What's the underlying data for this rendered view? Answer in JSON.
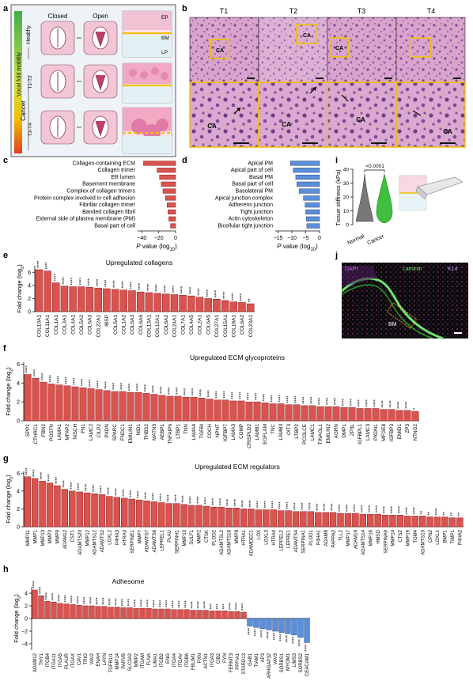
{
  "panel_letters": {
    "a": "a",
    "b": "b",
    "c": "c",
    "d": "d",
    "e": "e",
    "f": "f",
    "g": "g",
    "h": "h",
    "i": "i",
    "j": "j"
  },
  "panel_a": {
    "col_closed": "Closed",
    "col_open": "Open",
    "side_label": "Vocal fold mobility",
    "row_healthy": "Healthy",
    "row_cancer": "Cancer",
    "row_t1t2": "T1-T2",
    "row_t3t4": "T3-T4",
    "tissue_ep": "EP",
    "tissue_bm": "BM",
    "tissue_lp": "LP"
  },
  "panel_b": {
    "columns": [
      "T1",
      "T2",
      "T3",
      "T4"
    ],
    "box_label": "CA",
    "zoom_labels": [
      [
        "CA"
      ],
      [
        "CA"
      ],
      [
        "CA"
      ],
      [
        "CA"
      ]
    ]
  },
  "panel_i": {
    "y_label": "Tissue stiffness (kPa)",
    "pvalue": "<0.0001",
    "ticks": [
      "0",
      "10",
      "20",
      "30",
      "40"
    ]
  },
  "panel_j": {
    "label_dapi": "DAPI",
    "label_laminin": "Laminin",
    "label_k14": "K14",
    "label_bm": "BM"
  },
  "colors": {
    "up_bar": "#d9534f",
    "up_bar_stroke": "#8b1a1a",
    "down_bar": "#5b8fd9",
    "down_bar_stroke": "#1f3f7a",
    "he_pink": "#c987b8",
    "he_purple": "#6d3f8c",
    "gold": "#f2c200",
    "green_dot": "#3fbf3f"
  },
  "chart_data": [
    {
      "id": "c",
      "type": "bar",
      "orientation": "horizontal",
      "xlabel": "P value (log10)",
      "xticks": [
        -40,
        -20,
        0
      ],
      "xlim": [
        -45,
        0
      ],
      "categories": [
        "Collagen-containing ECM",
        "Collagen trimer",
        "ER lumen",
        "Basement membrane",
        "Complex of collagen trimers",
        "Protein complex involved in cell adhesion",
        "Fibrillar collagen trimer",
        "Banded collagen fibril",
        "External side of plasma membrane (PM)",
        "Basal part of cell"
      ],
      "values": [
        -38,
        -22,
        -19,
        -17,
        -15,
        -12,
        -10,
        -9,
        -8,
        -6
      ]
    },
    {
      "id": "d",
      "type": "bar",
      "orientation": "horizontal",
      "xlabel": "P value (log10)",
      "xticks": [
        -15,
        -10,
        -5,
        0
      ],
      "xlim": [
        -16,
        0
      ],
      "categories": [
        "Apical PM",
        "Apical part of cell",
        "Basal PM",
        "Basal part of cell",
        "Basolateral PM",
        "Apical junction complex",
        "Adherens junction",
        "Tight junction",
        "Actin cytoskeleton",
        "Bicellular tight junction"
      ],
      "values": [
        -10.5,
        -9.5,
        -8.6,
        -8.2,
        -7.4,
        -5.8,
        -5.2,
        -5.0,
        -4.8,
        -4.6
      ]
    },
    {
      "id": "e",
      "type": "bar",
      "title": "Upregulated collagens",
      "ylabel": "Fold change (log2)",
      "yticks": [
        0,
        2,
        4,
        6
      ],
      "ylim": [
        0,
        7
      ],
      "categories": [
        "COL10A1",
        "COL11A1",
        "COL1A1",
        "COL3A1",
        "COL4A1",
        "COL5A2",
        "COL6A3",
        "COL22A1",
        "IBSP",
        "COL5A1",
        "COL1A2",
        "COL5A3",
        "COL6A6",
        "COL13A1",
        "COL12A1",
        "COL6A2",
        "COL24A1",
        "COL7A1",
        "COL4A5",
        "COL2A1",
        "COL6A5",
        "COL27A1",
        "COL15A1",
        "COL18A1",
        "COL6A2",
        "COL23A1"
      ],
      "values": [
        6.4,
        6.2,
        4.4,
        3.9,
        3.8,
        3.8,
        3.7,
        3.6,
        3.5,
        3.4,
        3.3,
        3.2,
        3.0,
        2.9,
        2.8,
        2.7,
        2.6,
        2.5,
        2.4,
        2.2,
        2.0,
        1.9,
        1.7,
        1.5,
        1.4,
        1.2
      ],
      "stars": [
        "****",
        "****",
        "****",
        "****",
        "****",
        "****",
        "****",
        "****",
        "****",
        "****",
        "****",
        "****",
        "****",
        "****",
        "****",
        "****",
        "****",
        "****",
        "****",
        "****",
        "****",
        "****",
        "****",
        "****",
        "****",
        "**"
      ]
    },
    {
      "id": "f",
      "type": "bar",
      "title": "Upregulated ECM glycoproteins",
      "ylabel": "Fold change (log2)",
      "yticks": [
        0,
        2,
        4,
        6
      ],
      "ylim": [
        0,
        6.2
      ],
      "categories": [
        "SPP1",
        "CTHRC1",
        "FBN2",
        "POSTN",
        "LAMA1",
        "MFAP2",
        "NISCH",
        "FN1",
        "LAMC2",
        "CILP2",
        "PXDN",
        "SPARC",
        "FNDC1",
        "EMILIN1",
        "NID1",
        "THBS2",
        "MATN3",
        "AEBP1",
        "TNFAIP6",
        "LTBP1",
        "TNN",
        "LAMA4",
        "TGFBI",
        "COCH",
        "NPNT",
        "IGFBP7",
        "LAMA3",
        "COMP",
        "CRISPLD2",
        "LAMB1",
        "EGFLAM",
        "TNC",
        "LAMB3",
        "OIT3",
        "LTBP2",
        "PCOLCE",
        "LAMC1",
        "TINAGL1",
        "EMILIN2",
        "AGRN",
        "DMP1",
        "ZP3L",
        "IGFBPL1",
        "LAMC3",
        "PXDNL",
        "MFGE8",
        "IGFBP3",
        "EMID1",
        "ZP3",
        "NTNG2"
      ],
      "values": [
        4.9,
        4.5,
        4.1,
        3.9,
        3.8,
        3.7,
        3.6,
        3.5,
        3.4,
        3.3,
        3.2,
        3.1,
        3.1,
        3.0,
        3.0,
        2.9,
        2.8,
        2.7,
        2.6,
        2.6,
        2.5,
        2.5,
        2.4,
        2.3,
        2.2,
        2.2,
        2.1,
        2.1,
        2.0,
        2.0,
        1.9,
        1.8,
        1.8,
        1.7,
        1.7,
        1.6,
        1.6,
        1.5,
        1.5,
        1.5,
        1.4,
        1.4,
        1.3,
        1.3,
        1.3,
        1.2,
        1.2,
        1.1,
        1.1,
        1.0
      ],
      "stars": [
        "****",
        "****",
        "****",
        "****",
        "****",
        "****",
        "****",
        "****",
        "****",
        "****",
        "****",
        "****",
        "****",
        "****",
        "****",
        "****",
        "****",
        "****",
        "****",
        "****",
        "****",
        "****",
        "****",
        "****",
        "****",
        "****",
        "****",
        "****",
        "****",
        "****",
        "****",
        "****",
        "****",
        "****",
        "****",
        "****",
        "****",
        "****",
        "****",
        "****",
        "****",
        "****",
        "****",
        "****",
        "****",
        "****",
        "****",
        "****",
        "****",
        "*"
      ]
    },
    {
      "id": "g",
      "type": "bar",
      "title": "Upregulated ECM regulators",
      "ylabel": "Fold change (log2)",
      "yticks": [
        0,
        2,
        4,
        6
      ],
      "ylim": [
        0,
        6.2
      ],
      "categories": [
        "MMP11",
        "MMP1",
        "MMP13",
        "MMP3",
        "MMP9",
        "ADAM12",
        "CST1",
        "ADAMTS20",
        "MMP12",
        "ADAMTS12",
        "ADAMTS2",
        "LOXL2",
        "P4HA3",
        "HTRA3",
        "SERPINE1",
        "MMP7",
        "ADAMTS7",
        "ADAMTS6",
        "LEPREL1",
        "PLAU",
        "SERPINH1",
        "MMP10",
        "SULF1",
        "MMP2",
        "CTSK",
        "PLOD2",
        "ADAMTSL2",
        "ADAMTS16",
        "MMP8",
        "HTRA1",
        "ADAMDEC1",
        "LOX",
        "LOXL3",
        "HTRA4",
        "LEPREL2",
        "LEPRE1",
        "ADAMTS4",
        "SERPINA1",
        "PLOD1",
        "P4HA1",
        "ADAM8",
        "PAPPA2",
        "TLL2",
        "MMP17",
        "ADAM19",
        "ADAMTS14",
        "MMP16",
        "HMSD",
        "SERPINA9",
        "MMP14",
        "CTSZ",
        "MMP19",
        "TGM4",
        "ADAMTS10",
        "CPN2",
        "LOXL1",
        "BMP1",
        "TIMP1",
        "P4HA2"
      ],
      "values": [
        5.6,
        5.4,
        5.1,
        4.9,
        4.6,
        4.2,
        4.0,
        3.9,
        3.8,
        3.7,
        3.6,
        3.4,
        3.3,
        3.2,
        3.1,
        3.0,
        2.9,
        2.8,
        2.7,
        2.6,
        2.6,
        2.5,
        2.4,
        2.4,
        2.3,
        2.2,
        2.2,
        2.1,
        2.1,
        2.0,
        2.0,
        1.9,
        1.9,
        1.9,
        1.8,
        1.8,
        1.7,
        1.7,
        1.7,
        1.6,
        1.6,
        1.6,
        1.5,
        1.5,
        1.5,
        1.4,
        1.4,
        1.4,
        1.3,
        1.3,
        1.3,
        1.2,
        1.2,
        1.2,
        1.1,
        1.1,
        1.1,
        1.0,
        1.0
      ],
      "stars": [
        "****",
        "****",
        "****",
        "****",
        "****",
        "****",
        "****",
        "****",
        "****",
        "****",
        "****",
        "****",
        "****",
        "****",
        "****",
        "****",
        "****",
        "****",
        "****",
        "****",
        "****",
        "****",
        "****",
        "****",
        "****",
        "****",
        "****",
        "****",
        "****",
        "****",
        "****",
        "****",
        "****",
        "****",
        "****",
        "****",
        "****",
        "****",
        "****",
        "****",
        "****",
        "****",
        "****",
        "****",
        "****",
        "****",
        "****",
        "****",
        "****",
        "****",
        "****",
        "****",
        "****",
        "**",
        "**",
        "****",
        "**",
        "**",
        "**"
      ]
    },
    {
      "id": "h",
      "type": "bar",
      "title": "Adhesome",
      "ylabel": "Fold change (log2)",
      "yticks": [
        -4,
        -2,
        0,
        2,
        4
      ],
      "ylim": [
        -5,
        5
      ],
      "categories": [
        "ADAM12",
        "THY1",
        "ITGB4",
        "ITGA11",
        "ITGA5",
        "PLAUR",
        "ITGAX",
        "CAV1",
        "TRIO",
        "VAV2",
        "ENAH",
        "LAYN",
        "TGFB1I1",
        "MMP14",
        "PARVB",
        "SLC3A2",
        "MMP2",
        "ITGAM",
        "FLNA",
        "LIMA1",
        "ITGB2",
        "ENG",
        "ITGA4",
        "ITGAV",
        "ITGB6",
        "FBLIM1",
        "PXN",
        "ACTN1",
        "ITGA3",
        "CIB2",
        "FYN",
        "FERMT3",
        "PPFIA1",
        "STARD13",
        "GAB1",
        "TIAM1",
        "AP3",
        "ARHGAP32",
        "VAV3",
        "SORBS1",
        "MYOM1",
        "LIMS3",
        "SORBS2",
        "CEACAM1"
      ],
      "values": [
        4.5,
        3.6,
        2.7,
        2.6,
        2.4,
        2.3,
        2.2,
        2.1,
        2.0,
        2.0,
        1.9,
        1.9,
        1.8,
        1.8,
        1.7,
        1.7,
        1.6,
        1.6,
        1.6,
        1.5,
        1.5,
        1.5,
        1.4,
        1.4,
        1.4,
        1.3,
        1.3,
        1.3,
        1.2,
        1.2,
        1.2,
        1.1,
        1.1,
        1.0,
        -1.2,
        -1.4,
        -1.6,
        -1.8,
        -2.0,
        -2.2,
        -2.4,
        -2.6,
        -3.0,
        -3.8
      ],
      "stars": [
        "****",
        "****",
        "****",
        "****",
        "****",
        "****",
        "****",
        "****",
        "****",
        "****",
        "****",
        "****",
        "****",
        "****",
        "****",
        "****",
        "****",
        "****",
        "****",
        "****",
        "****",
        "****",
        "****",
        "****",
        "****",
        "****",
        "****",
        "****",
        "***",
        "***",
        "***",
        "****",
        "****",
        "****",
        "****",
        "****",
        "****",
        "****",
        "****",
        "****",
        "****",
        "****",
        "****",
        "****"
      ]
    }
  ]
}
